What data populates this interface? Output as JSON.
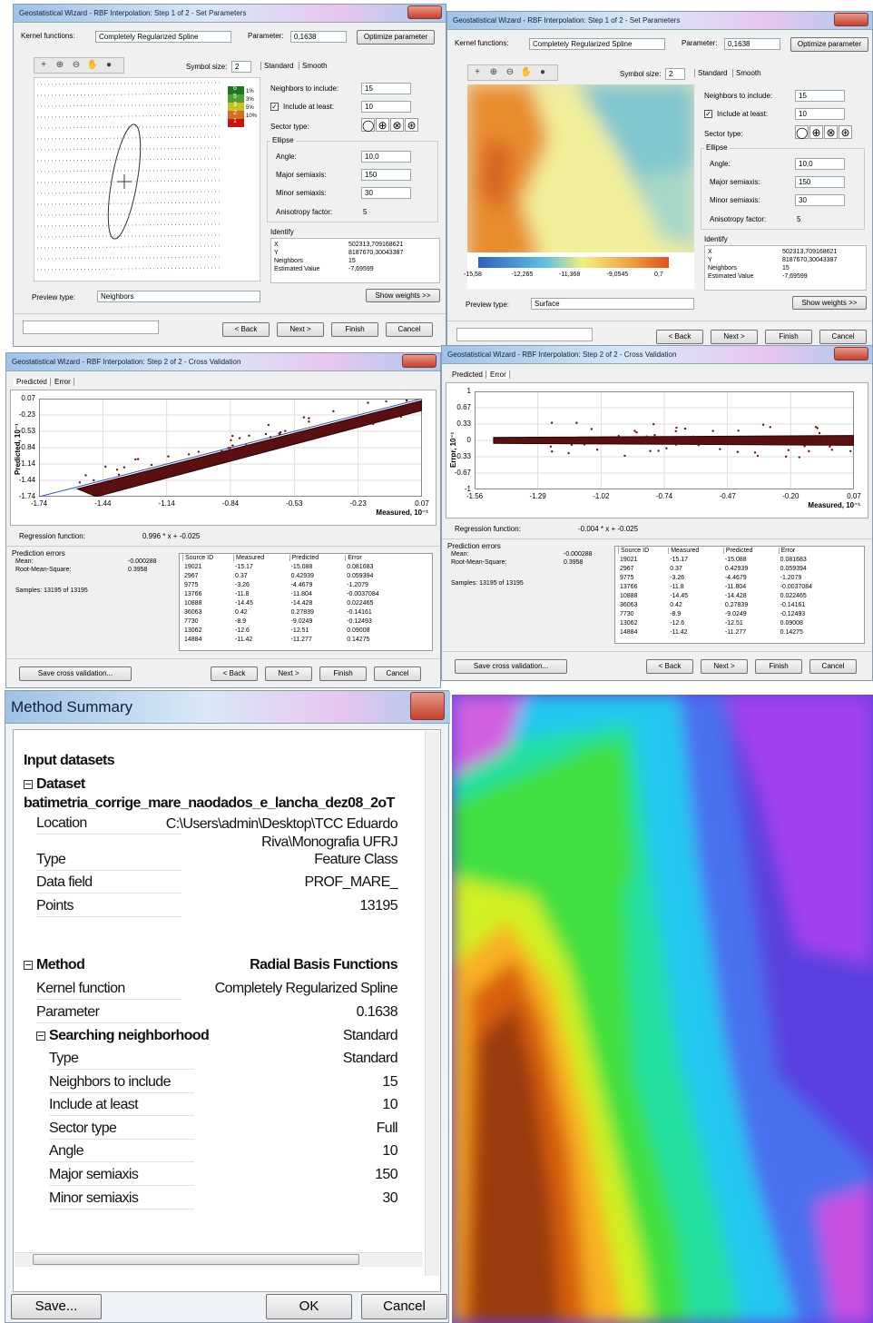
{
  "set_parameters": {
    "title": "Geostatistical Wizard - RBF Interpolation: Step 1 of 2 - Set Parameters",
    "kernel_label": "Kernel functions:",
    "kernel_value": "Completely Regularized Spline",
    "parameter_label": "Parameter:",
    "parameter_value": "0,1638",
    "optimize_button": "Optimize parameter",
    "symbol_size_label": "Symbol size:",
    "symbol_size_value": "2",
    "tabs": [
      "Standard",
      "Smooth"
    ],
    "neighbors_label": "Neighbors to include:",
    "neighbors_value": "15",
    "include_label": "Include at least:",
    "include_value": "10",
    "sector_label": "Sector type:",
    "ellipse_label": "Ellipse",
    "angle_label": "Angle:",
    "angle_value": "10,0",
    "major_label": "Major semiaxis:",
    "major_value": "150",
    "minor_label": "Minor semiaxis:",
    "minor_value": "30",
    "anisotropy_label": "Anisotropy factor:",
    "anisotropy_value": "5",
    "identify_label": "Identify",
    "identify_rows": [
      [
        "X",
        "502313,709168621"
      ],
      [
        "Y",
        "8187670,30043387"
      ],
      [
        "Neighbors",
        "15"
      ],
      [
        "Estimated Value",
        "-7,69599"
      ]
    ],
    "show_weights": "Show weights >>",
    "preview_label": "Preview type:",
    "buttons": [
      "< Back",
      "Next >",
      "Finish",
      "Cancel"
    ],
    "panels": [
      {
        "preview_value": "Neighbors",
        "legend_counts": [
          "6",
          "5",
          "3",
          "2",
          "1"
        ],
        "legend_percents": [
          "1%",
          "3%",
          "5%",
          "10%"
        ]
      },
      {
        "preview_value": "Surface",
        "colorbar": [
          "-15,58",
          "-12,265",
          "-11,368",
          "-9,0545",
          "0,7"
        ]
      }
    ]
  },
  "cross_validation": {
    "title": "Geostatistical Wizard - RBF Interpolation: Step 2 of 2 - Cross Validation",
    "tabs": [
      "Predicted",
      "Error"
    ],
    "x_axis_label": "Measured, 10⁻¹",
    "regression_label": "Regression function:",
    "prediction_errors_label": "Prediction errors",
    "mean_label": "Mean:",
    "mean_value": "-0.000288",
    "rms_label": "Root-Mean-Square:",
    "rms_value": "0.3958",
    "samples": "Samples: 13195 of 13195",
    "table": {
      "headers": [
        "Source ID",
        "Measured",
        "Predicted",
        "Error"
      ],
      "rows": [
        [
          "19021",
          "-15.17",
          "-15.088",
          "0.081683"
        ],
        [
          "2967",
          "0.37",
          "0.42939",
          "0.059394"
        ],
        [
          "9775",
          "-3.26",
          "-4.4679",
          "-1.2079"
        ],
        [
          "13766",
          "-11.8",
          "-11.804",
          "-0.0037084"
        ],
        [
          "10888",
          "-14.45",
          "-14.428",
          "0.022465"
        ],
        [
          "36063",
          "0.42",
          "0.27839",
          "-0.14161"
        ],
        [
          "7730",
          "-8.9",
          "-9.0249",
          "-0.12493"
        ],
        [
          "13062",
          "-12.6",
          "-12.51",
          "0.09008"
        ],
        [
          "14884",
          "-11.42",
          "-11.277",
          "0.14275"
        ]
      ]
    },
    "save_button": "Save cross validation...",
    "buttons": [
      "< Back",
      "Next >",
      "Finish",
      "Cancel"
    ],
    "panels": [
      {
        "y_axis_label": "Predicted, 10⁻¹",
        "yticks": [
          "0.07",
          "-0.23",
          "-0.53",
          "-0.84",
          "-1.14",
          "-1.44",
          "-1.74"
        ],
        "xticks": [
          "-1.74",
          "-1.44",
          "-1.14",
          "-0.84",
          "-0.53",
          "-0.23",
          "0.07"
        ],
        "regression_value": "0.996 * x + -0.025"
      },
      {
        "y_axis_label": "Error, 10⁻¹",
        "yticks": [
          "1",
          "0.67",
          "0.33",
          "0",
          "-0.33",
          "-0.67",
          "-1"
        ],
        "xticks": [
          "-1.56",
          "-1.29",
          "-1.02",
          "-0.74",
          "-0.47",
          "-0.20",
          "0.07"
        ],
        "regression_value": "-0.004 * x + -0.025"
      }
    ]
  },
  "method_summary": {
    "title": "Method Summary",
    "input_heading": "Input datasets",
    "dataset_heading": "Dataset",
    "dataset_name": "batimetria_corrige_mare_naodados_e_lancha_dez08_2oT",
    "dataset_rows": [
      [
        "Location",
        "C:\\Users\\admin\\Desktop\\TCC Eduardo Riva\\Monografia UFRJ"
      ],
      [
        "Type",
        "Feature Class"
      ],
      [
        "Data field",
        "PROF_MARE_"
      ],
      [
        "Points",
        "13195"
      ]
    ],
    "method_heading": "Method",
    "method_value": "Radial Basis Functions",
    "method_rows": [
      [
        "Kernel function",
        "Completely Regularized Spline"
      ],
      [
        "Parameter",
        "0.1638"
      ]
    ],
    "neighborhood_heading": "Searching neighborhood",
    "neighborhood_value": "Standard",
    "neighborhood_rows": [
      [
        "Type",
        "Standard"
      ],
      [
        "Neighbors to include",
        "15"
      ],
      [
        "Include at least",
        "10"
      ],
      [
        "Sector type",
        "Full"
      ],
      [
        "Angle",
        "10"
      ],
      [
        "Major semiaxis",
        "150"
      ],
      [
        "Minor semiaxis",
        "30"
      ]
    ],
    "buttons": [
      "Save...",
      "OK",
      "Cancel"
    ]
  }
}
